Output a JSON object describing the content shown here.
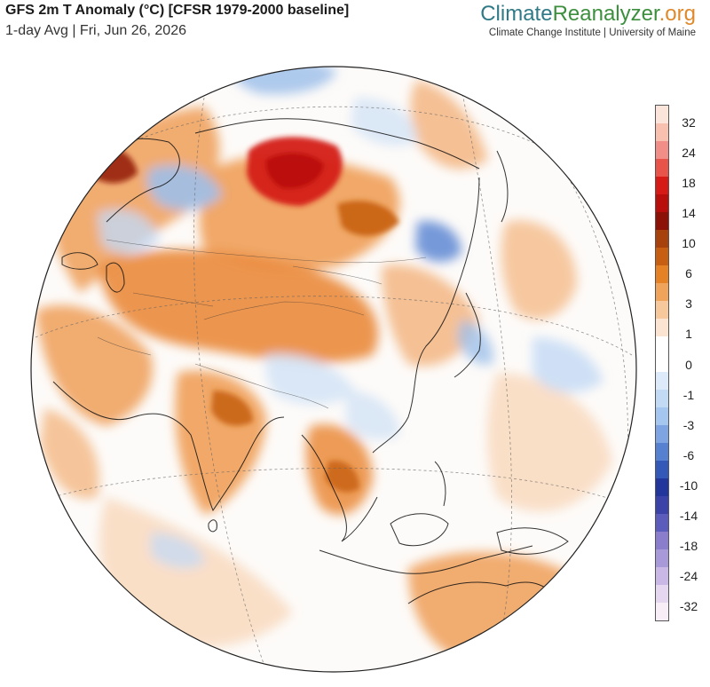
{
  "header": {
    "title": "GFS 2m T Anomaly (°C) [CFSR 1979-2000 baseline]",
    "subtitle": "1-day Avg | Fri, Jun 26, 2026"
  },
  "brand": {
    "logo_part1": "Climate",
    "logo_part2": "Reanalyzer",
    "logo_part3": ".org",
    "tagline": "Climate Change Institute | University of Maine"
  },
  "legend": {
    "labels": [
      "32",
      "24",
      "18",
      "14",
      "10",
      "6",
      "3",
      "1",
      "0",
      "-1",
      "-3",
      "-6",
      "-10",
      "-14",
      "-18",
      "-24",
      "-32"
    ],
    "colors": [
      "#fbe4da",
      "#f8c0ae",
      "#f28e88",
      "#e8534a",
      "#d61b16",
      "#b80f0d",
      "#8c1208",
      "#a8420d",
      "#c65f12",
      "#e48225",
      "#f0a35b",
      "#f6c89c",
      "#fbe4d2",
      "#ffffff",
      "#ffffff",
      "#dceafa",
      "#c3daf5",
      "#a5c6ee",
      "#7ea5e1",
      "#5681d1",
      "#3358b8",
      "#22369b",
      "#3b43a8",
      "#5c5cbc",
      "#8a7dcc",
      "#a89ad8",
      "#c9b8e6",
      "#e6d7f1",
      "#f7eef8"
    ]
  },
  "map": {
    "projection": "orthographic",
    "center": "Asia",
    "colors": {
      "ocean_neutral": "#fdfbf9",
      "warm_light": "#f8d3b2",
      "warm": "#ef9e58",
      "warm_strong": "#e47a26",
      "hot": "#c6301e",
      "very_hot": "#d41a14",
      "cool_light": "#d5e4f6",
      "cool": "#9fc0ea",
      "cool_strong": "#5d87d4"
    }
  }
}
